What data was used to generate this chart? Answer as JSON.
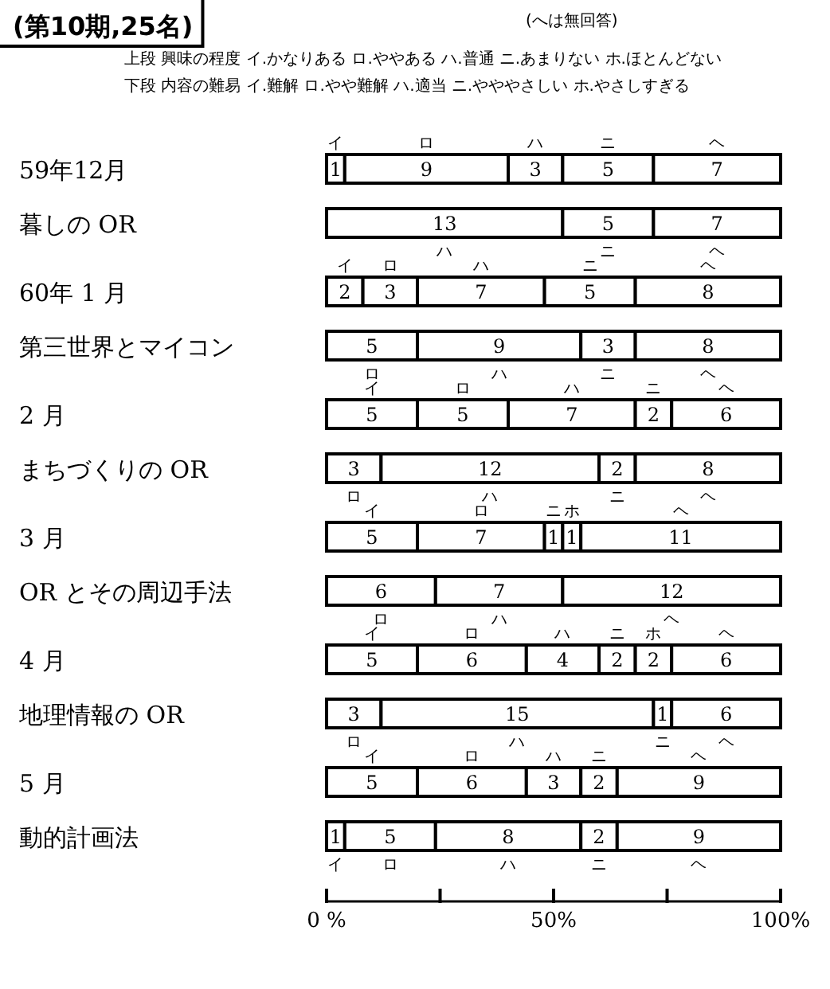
{
  "chart_data": {
    "type": "bar",
    "orientation": "horizontal",
    "stacked": true,
    "title": "(第10期,25名)",
    "subtitle": "(へは無回答)",
    "annotations": [
      "上段 興味の程度 イ.かなりある ロ.ややある ハ.普通 ニ.あまりない ホ.ほとんどない",
      "下段 内容の難易 イ.難解 ロ.やや難解 ハ.適当 ニ.やややさしい ホ.やさしすぎる"
    ],
    "categories": [
      "59年12月",
      "暮しの OR",
      "60年 1 月",
      "第三世界とマイコン",
      "2 月",
      "まちづくりの OR",
      "3 月",
      "OR とその周辺手法",
      "4 月",
      "地理情報の OR",
      "5 月",
      "動的計画法"
    ],
    "series": [
      {
        "name": "イ",
        "color": "#ffffff",
        "values": [
          1,
          null,
          2,
          null,
          5,
          null,
          5,
          null,
          5,
          null,
          5,
          1
        ]
      },
      {
        "name": "ロ",
        "color": "#ffffff",
        "values": [
          9,
          null,
          3,
          5,
          5,
          3,
          7,
          6,
          6,
          3,
          6,
          5
        ]
      },
      {
        "name": "ハ",
        "color": "#ffffff",
        "values": [
          3,
          13,
          7,
          9,
          7,
          12,
          null,
          7,
          4,
          15,
          3,
          8
        ]
      },
      {
        "name": "ニ",
        "color": "#ffffff",
        "values": [
          5,
          5,
          5,
          3,
          2,
          2,
          1,
          null,
          2,
          1,
          2,
          2
        ]
      },
      {
        "name": "ホ",
        "color": "#ffffff",
        "values": [
          null,
          null,
          null,
          null,
          null,
          null,
          1,
          null,
          2,
          null,
          null,
          null
        ]
      },
      {
        "name": "ヘ",
        "color": "#ffffff",
        "values": [
          7,
          7,
          8,
          8,
          6,
          8,
          11,
          12,
          6,
          6,
          9,
          9
        ]
      }
    ],
    "xlim": [
      0,
      25
    ],
    "x2lim": [
      0,
      100
    ],
    "x2ticks": [
      {
        "value": 0,
        "label": "0 %"
      },
      {
        "value": 25,
        "label": null
      },
      {
        "value": 50,
        "label": "50%"
      },
      {
        "value": 75,
        "label": null
      },
      {
        "value": 100,
        "label": "100%"
      }
    ],
    "data_labels": true,
    "grid": false
  }
}
